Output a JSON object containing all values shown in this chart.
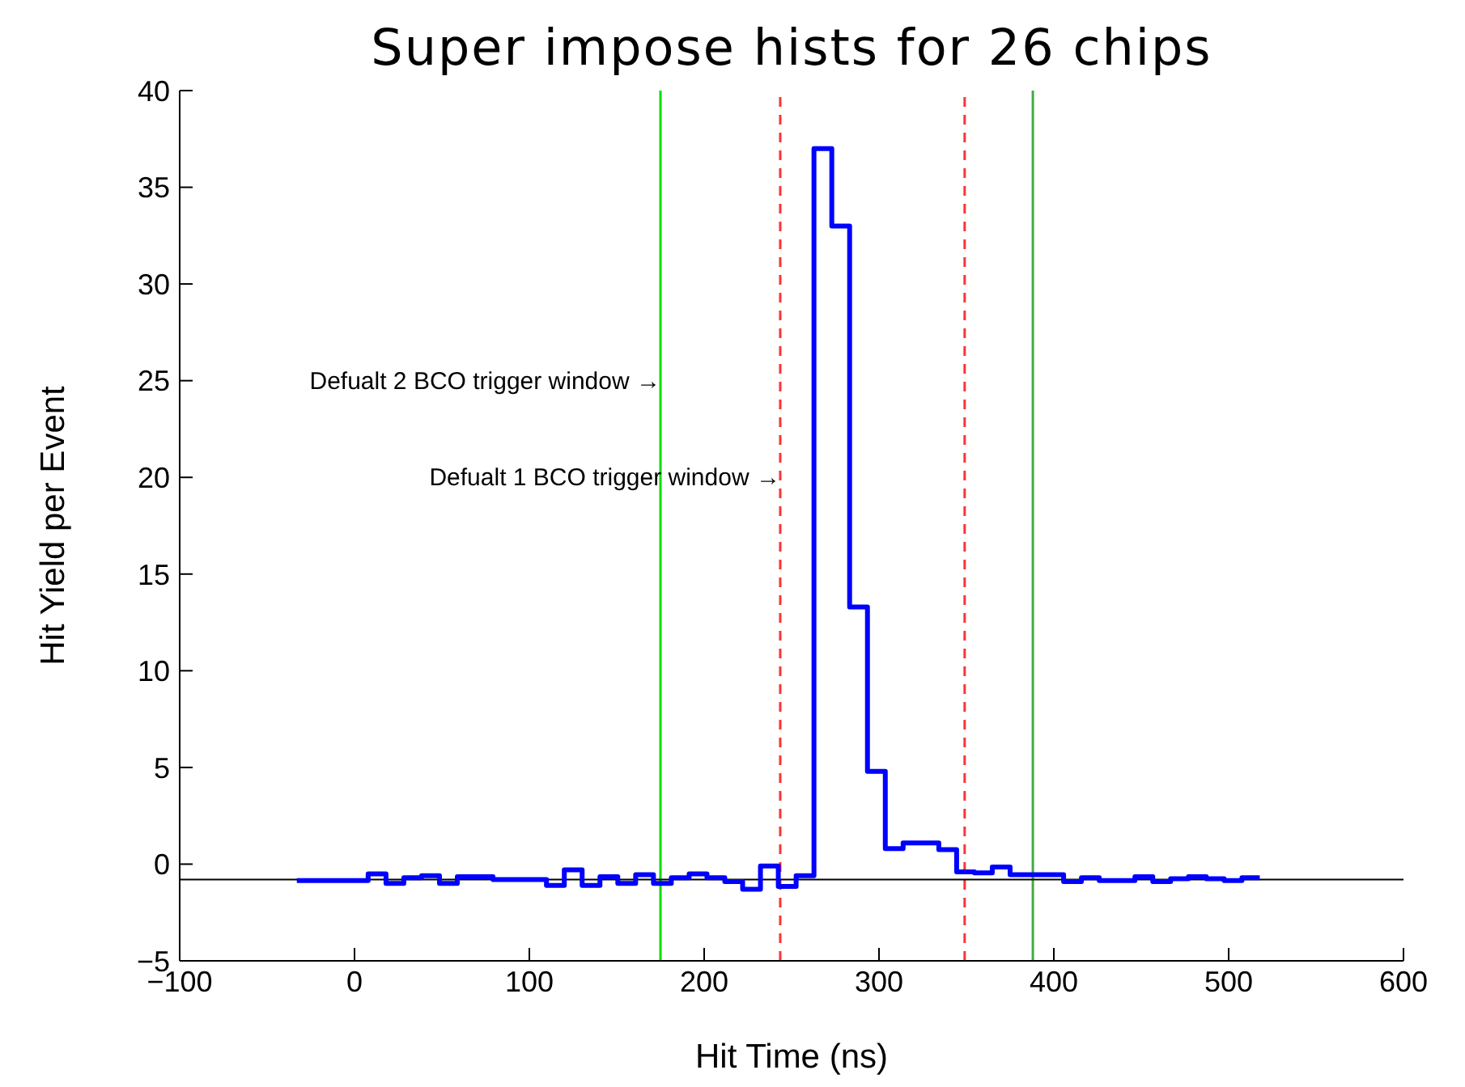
{
  "chart_data": {
    "type": "histogram",
    "title": "Super impose hists for 26 chips",
    "xlabel": "Hit Time (ns)",
    "ylabel": "Hit Yield per Event",
    "bins": [
      -33,
      -22.8,
      -12.6,
      -2.4,
      7.8,
      18,
      28.2,
      38.4,
      48.6,
      58.8,
      69,
      79.2,
      89.4,
      99.6,
      109.8,
      120,
      130.2,
      140.4,
      150.6,
      160.8,
      171,
      181.2,
      191.4,
      201.6,
      211.8,
      222,
      232.2,
      242.4,
      252.6,
      262.8,
      273,
      283.2,
      293.4,
      303.6,
      313.8,
      324,
      334.2,
      344.4,
      354.6,
      364.8,
      375,
      385.2,
      395.4,
      405.6,
      415.8,
      426,
      436.2,
      446.4,
      456.6,
      466.8,
      477,
      487.2,
      497.4,
      507.6,
      517.8
    ],
    "values": [
      -0.85,
      -0.85,
      -0.85,
      -0.85,
      -0.5,
      -1,
      -0.7,
      -0.6,
      -1,
      -0.65,
      -0.65,
      -0.8,
      -0.8,
      -0.8,
      -1.1,
      -0.3,
      -1.1,
      -0.65,
      -1,
      -0.55,
      -1,
      -0.7,
      -0.5,
      -0.7,
      -0.9,
      -1.3,
      -0.1,
      -1.15,
      -0.6,
      37,
      33,
      13.3,
      4.8,
      0.8,
      1.1,
      1.1,
      0.75,
      -0.4,
      -0.45,
      -0.15,
      -0.55,
      -0.55,
      -0.55,
      -0.9,
      -0.7,
      -0.85,
      -0.85,
      -0.65,
      -0.9,
      -0.75,
      -0.65,
      -0.75,
      -0.85,
      -0.7
    ],
    "color": "#0000ff",
    "line_style": "solid",
    "xlim": [
      -100,
      600
    ],
    "xticks": [
      -100,
      0,
      100,
      200,
      300,
      400,
      500,
      600
    ],
    "ylim": [
      -5,
      40
    ],
    "yticks": [
      -5,
      0,
      5,
      10,
      15,
      20,
      25,
      30,
      35,
      40
    ],
    "grid": false,
    "legend": false,
    "ref_lines": [
      {
        "axis": "x",
        "value": 175,
        "color": "#00e000",
        "line_style": "solid"
      },
      {
        "axis": "x",
        "value": 243.5,
        "color": "#ff3333",
        "line_style": "dashed"
      },
      {
        "axis": "x",
        "value": 349,
        "color": "#ff3333",
        "line_style": "dashed"
      },
      {
        "axis": "x",
        "value": 388,
        "color": "#44aa44",
        "line_style": "solid"
      },
      {
        "axis": "y",
        "value": -0.8,
        "color": "#000000",
        "line_style": "solid"
      }
    ],
    "annotations": [
      {
        "text": "Defualt 2 BCO trigger window →",
        "x": 175,
        "y": 25
      },
      {
        "text": "Defualt 1 BCO trigger window →",
        "x": 243.5,
        "y": 20
      }
    ]
  }
}
